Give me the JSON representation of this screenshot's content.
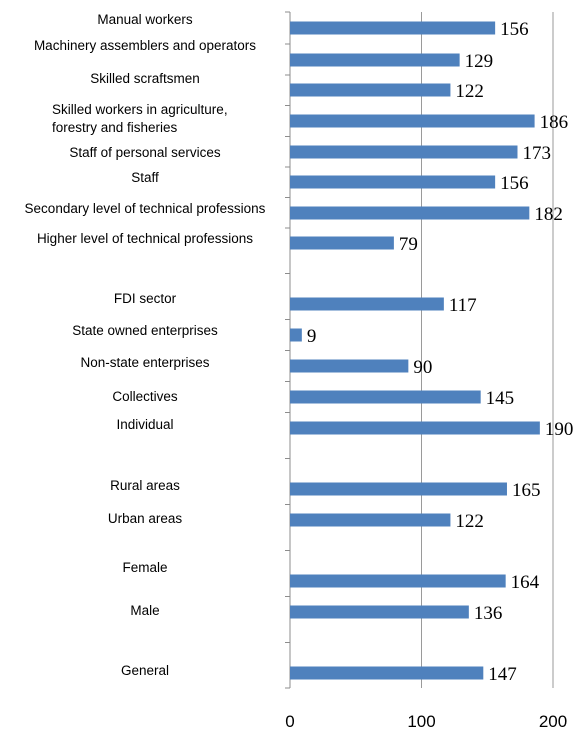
{
  "chart_data": {
    "type": "bar",
    "orientation": "horizontal",
    "title": "",
    "xlabel": "",
    "ylabel": "",
    "xlim": [
      0,
      200
    ],
    "x_ticks": [
      "0",
      "100",
      "200"
    ],
    "grid": "vertical at 100 and 200",
    "bar_color": "#4F81BD",
    "categories": [
      {
        "label": [
          "Manual workers"
        ],
        "value": 156,
        "value_label": "156"
      },
      {
        "label": [
          "Machinery assemblers and operators"
        ],
        "value": 129,
        "value_label": "129"
      },
      {
        "label": [
          "Skilled scraftsmen"
        ],
        "value": 122,
        "value_label": "122"
      },
      {
        "label": [
          "Skilled workers in agriculture,",
          "forestry and fisheries"
        ],
        "value": 186,
        "value_label": "186"
      },
      {
        "label": [
          "Staff of personal services"
        ],
        "value": 173,
        "value_label": "173"
      },
      {
        "label": [
          "Staff"
        ],
        "value": 156,
        "value_label": "156"
      },
      {
        "label": [
          "Secondary level of technical professions"
        ],
        "value": 182,
        "value_label": "182"
      },
      {
        "label": [
          "Higher level of technical professions"
        ],
        "value": 79,
        "value_label": "79"
      },
      {
        "label": [
          "FDI sector"
        ],
        "value": 117,
        "value_label": "117"
      },
      {
        "label": [
          "State owned enterprises"
        ],
        "value": 9,
        "value_label": "9"
      },
      {
        "label": [
          "Non-state enterprises"
        ],
        "value": 90,
        "value_label": "90"
      },
      {
        "label": [
          "Collectives"
        ],
        "value": 145,
        "value_label": "145"
      },
      {
        "label": [
          "Individual"
        ],
        "value": 190,
        "value_label": "190"
      },
      {
        "label": [
          "Rural areas"
        ],
        "value": 165,
        "value_label": "165"
      },
      {
        "label": [
          "Urban areas"
        ],
        "value": 122,
        "value_label": "122"
      },
      {
        "label": [
          "Female"
        ],
        "value": 164,
        "value_label": "164"
      },
      {
        "label": [
          "Male"
        ],
        "value": 136,
        "value_label": "136"
      },
      {
        "label": [
          "General"
        ],
        "value": 147,
        "value_label": "147"
      }
    ]
  }
}
